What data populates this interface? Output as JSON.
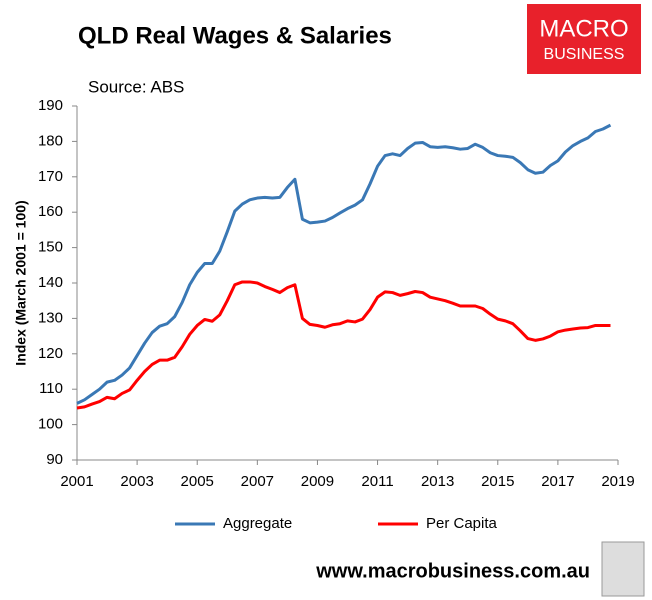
{
  "chart_data": {
    "type": "line",
    "title": "QLD Real Wages & Salaries",
    "subtitle": "Source: ABS",
    "y_label": "Index (March 2001 = 100)",
    "x": [
      2001,
      2001.25,
      2001.5,
      2001.75,
      2002,
      2002.25,
      2002.5,
      2002.75,
      2003,
      2003.25,
      2003.5,
      2003.75,
      2004,
      2004.25,
      2004.5,
      2004.75,
      2005,
      2005.25,
      2005.5,
      2005.75,
      2006,
      2006.25,
      2006.5,
      2006.75,
      2007,
      2007.25,
      2007.5,
      2007.75,
      2008,
      2008.25,
      2008.5,
      2008.75,
      2009,
      2009.25,
      2009.5,
      2009.75,
      2010,
      2010.25,
      2010.5,
      2010.75,
      2011,
      2011.25,
      2011.5,
      2011.75,
      2012,
      2012.25,
      2012.5,
      2012.75,
      2013,
      2013.25,
      2013.5,
      2013.75,
      2014,
      2014.25,
      2014.5,
      2014.75,
      2015,
      2015.25,
      2015.5,
      2015.75,
      2016,
      2016.25,
      2016.5,
      2016.75,
      2017,
      2017.25,
      2017.5,
      2017.75,
      2018,
      2018.25,
      2018.5,
      2018.75
    ],
    "series": [
      {
        "name": "Aggregate",
        "color": "#3a78b5",
        "values": [
          106,
          107,
          108.5,
          110,
          112,
          112.5,
          114,
          116,
          119.5,
          123,
          126,
          127.8,
          128.5,
          130.5,
          134.5,
          139.5,
          143,
          145.5,
          145.5,
          149,
          154.5,
          160.3,
          162.3,
          163.5,
          164,
          164.2,
          164,
          164.2,
          167,
          169.3,
          158,
          157,
          157.2,
          157.5,
          158.5,
          159.8,
          161,
          162,
          163.5,
          168,
          173,
          176,
          176.5,
          176,
          178,
          179.5,
          179.7,
          178.5,
          178.3,
          178.5,
          178.2,
          177.8,
          178,
          179.2,
          178.3,
          176.8,
          176,
          175.8,
          175.5,
          174,
          172,
          171,
          171.3,
          173.2,
          174.5,
          177,
          178.8,
          180,
          181,
          182.8,
          183.5,
          184.6
        ]
      },
      {
        "name": "Per Capita",
        "color": "#ff0000",
        "values": [
          104.7,
          105,
          105.8,
          106.5,
          107.7,
          107.3,
          108.8,
          109.8,
          112.5,
          115,
          117,
          118.2,
          118.2,
          119,
          122,
          125.5,
          128,
          129.7,
          129.2,
          131,
          135,
          139.5,
          140.3,
          140.3,
          140,
          139,
          138.2,
          137.3,
          138.7,
          139.5,
          130,
          128.3,
          128,
          127.5,
          128.2,
          128.5,
          129.3,
          129,
          129.8,
          132.5,
          136,
          137.5,
          137.3,
          136.5,
          137,
          137.6,
          137.3,
          136,
          135.5,
          135,
          134.3,
          133.5,
          133.5,
          133.5,
          132.8,
          131.2,
          129.8,
          129.3,
          128.5,
          126.5,
          124.3,
          123.8,
          124.2,
          125,
          126.2,
          126.7,
          127,
          127.3,
          127.4,
          128,
          128,
          128
        ]
      }
    ],
    "xlim": [
      2001,
      2019
    ],
    "xticks": [
      2001,
      2003,
      2005,
      2007,
      2009,
      2011,
      2013,
      2015,
      2017,
      2019
    ],
    "ylim": [
      90,
      190
    ],
    "yticks": [
      90,
      100,
      110,
      120,
      130,
      140,
      150,
      160,
      170,
      180,
      190
    ],
    "grid": false,
    "legend": "bottom"
  },
  "logo": {
    "line1": "MACRO",
    "line2": "BUSINESS"
  },
  "footer": "www.macrobusiness.com.au"
}
